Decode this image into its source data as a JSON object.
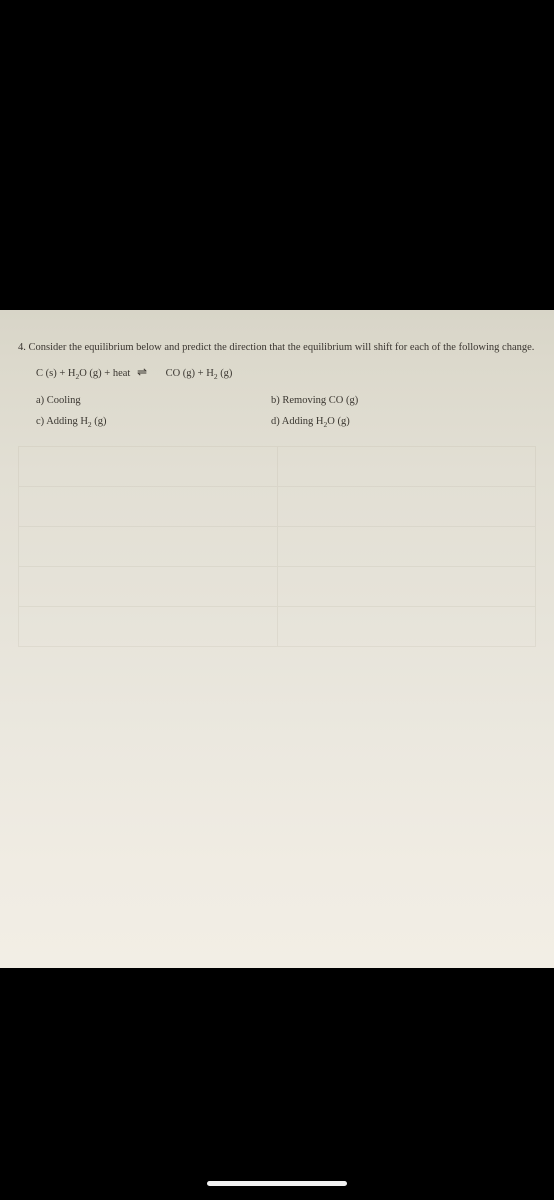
{
  "question": {
    "number": "4.",
    "intro": "Consider the equilibrium below and predict the direction that the equilibrium will shift for each of the following change.",
    "equation": {
      "left": "C (s) + H",
      "left_sub": "2",
      "left2": "O (g) + heat",
      "right": "CO (g) + H",
      "right_sub": "2",
      "right2": " (g)"
    },
    "options": {
      "a": "a) Cooling",
      "b": "b) Removing CO (g)",
      "c_pre": "c) Adding H",
      "c_sub": "2",
      "c_post": " (g)",
      "d_pre": "d)  Adding H",
      "d_sub": "2",
      "d_post": "O (g)"
    }
  },
  "colors": {
    "page_bg": "#000000",
    "paper_top": "#d8d5c8",
    "paper_bottom": "#f2eee5",
    "text": "#3a3630",
    "indicator": "#ffffff"
  }
}
